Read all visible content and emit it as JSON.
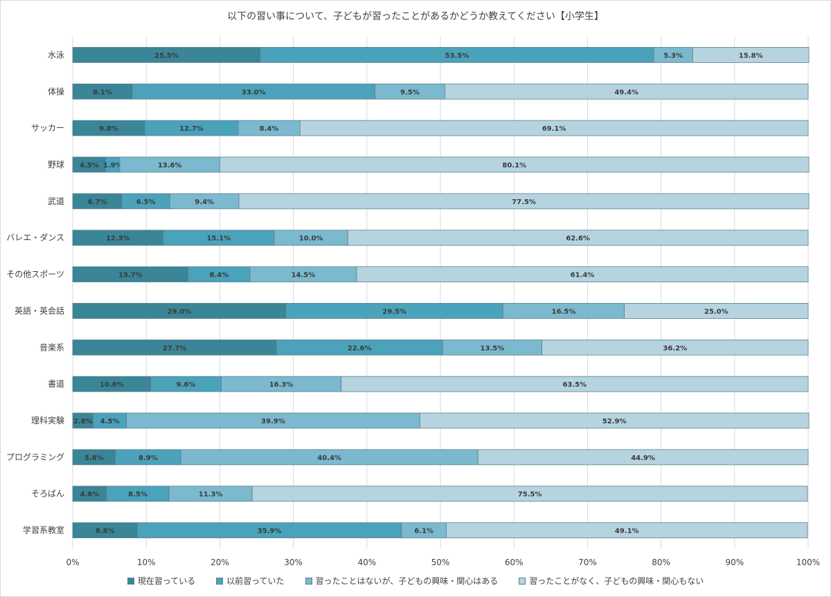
{
  "chart_data": {
    "type": "bar",
    "orientation": "horizontal",
    "stacked": "percent",
    "title": "以下の習い事について、子どもが習ったことがあるかどうか教えてください【小学生】",
    "categories": [
      "水泳",
      "体操",
      "サッカー",
      "野球",
      "武道",
      "バレエ・ダンス",
      "その他スポーツ",
      "英語・英会話",
      "音楽系",
      "書道",
      "理科実験",
      "プログラミング",
      "そろばん",
      "学習系教室"
    ],
    "series": [
      {
        "name": "現在習っている",
        "color": "#3a8597",
        "values": [
          25.5,
          8.1,
          9.8,
          4.5,
          6.7,
          12.3,
          15.7,
          29.0,
          27.7,
          10.6,
          2.8,
          5.8,
          4.6,
          8.8
        ]
      },
      {
        "name": "以前習っていた",
        "color": "#4ba2bb",
        "values": [
          53.5,
          33.0,
          12.7,
          1.9,
          6.5,
          15.1,
          8.4,
          29.5,
          22.6,
          9.6,
          4.5,
          8.9,
          8.5,
          35.9
        ]
      },
      {
        "name": "習ったことはないが、子どもの興味・関心はある",
        "color": "#7bb9cf",
        "values": [
          5.3,
          9.5,
          8.4,
          13.6,
          9.4,
          10.0,
          14.5,
          16.5,
          13.5,
          16.3,
          39.9,
          40.4,
          11.3,
          6.1
        ]
      },
      {
        "name": "習ったことがなく、子どもの興味・関心もない",
        "color": "#b5d4e0",
        "values": [
          15.8,
          49.4,
          69.1,
          80.1,
          77.5,
          62.6,
          61.4,
          25.0,
          36.2,
          63.5,
          52.9,
          44.9,
          75.5,
          49.1
        ]
      }
    ],
    "xticks": [
      "0%",
      "10%",
      "20%",
      "30%",
      "40%",
      "50%",
      "60%",
      "70%",
      "80%",
      "90%",
      "100%"
    ],
    "xlim": [
      0,
      100
    ],
    "grid": true,
    "legend_position": "bottom",
    "value_suffix": "%"
  }
}
